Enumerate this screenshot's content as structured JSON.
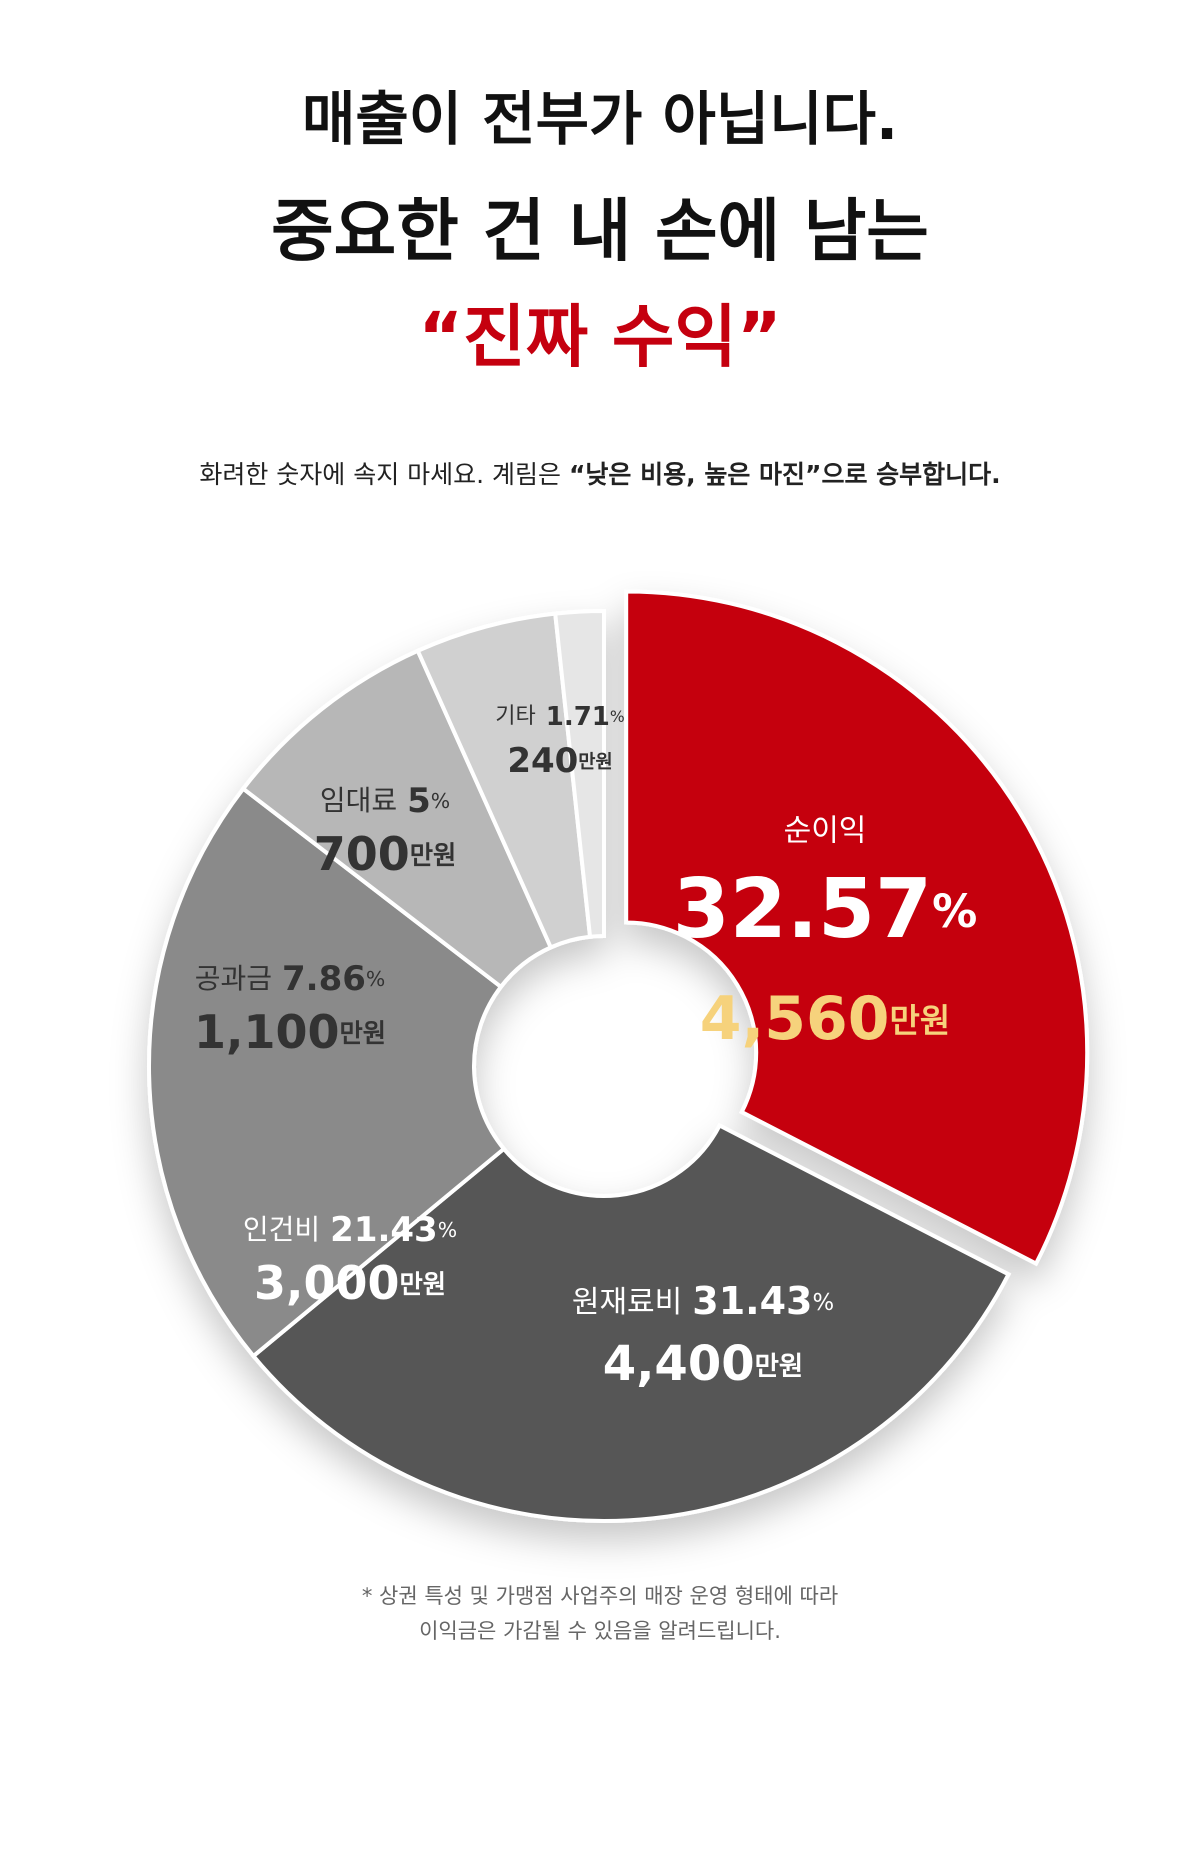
{
  "chart_data": {
    "type": "pie",
    "title_lines": [
      "매출이 전부가 아닙니다.",
      "중요한 건 내 손에 남는",
      "“진짜 수익”"
    ],
    "subtitle_parts": [
      "화려한 숫자에 속지 마세요. 계림은 ",
      "“낮은 비용, 높은 마진”으로 승부합니다."
    ],
    "categories": [
      "순이익",
      "원재료비",
      "인건비",
      "공과금",
      "임대료",
      "기타"
    ],
    "values": [
      32.57,
      31.43,
      21.43,
      7.86,
      5,
      1.71
    ],
    "percent_unit": "%",
    "amount_labels": [
      "4,560",
      "4,400",
      "3,000",
      "1,100",
      "700",
      "240"
    ],
    "amount_unit": "만원",
    "colors": [
      "#c5000f",
      "#575757",
      "#8a8a8a",
      "#b7b7b7",
      "#d0d0d0",
      "#e6e6e6"
    ],
    "note_lines": [
      "* 상권 특성 및 가맹점 사업주의 매장 운영 형태에 따라",
      "이익금은 가감될 수 있음을 알려드립니다."
    ]
  }
}
